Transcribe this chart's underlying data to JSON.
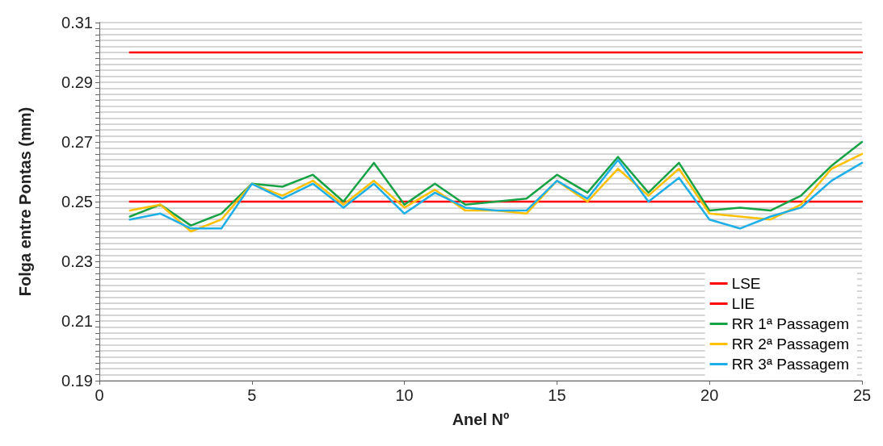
{
  "chart_data": {
    "type": "line",
    "xlabel": "Anel Nº",
    "ylabel": "Folga entre Pontas (mm)",
    "xlim": [
      0,
      25
    ],
    "xticks": [
      0,
      5,
      10,
      15,
      20,
      25
    ],
    "ylim": [
      0.19,
      0.31
    ],
    "yticks": [
      0.19,
      {
        "value": 0.192,
        "label": null
      },
      {
        "value": 0.194,
        "label": null
      },
      {
        "value": 0.196,
        "label": null
      },
      {
        "value": 0.198,
        "label": null
      },
      {
        "value": 0.2,
        "label": null
      },
      {
        "value": 0.202,
        "label": null
      },
      {
        "value": 0.204,
        "label": null
      },
      {
        "value": 0.206,
        "label": null
      },
      {
        "value": 0.208,
        "label": null
      },
      0.21,
      {
        "value": 0.212,
        "label": null
      },
      {
        "value": 0.214,
        "label": null
      },
      {
        "value": 0.216,
        "label": null
      },
      {
        "value": 0.218,
        "label": null
      },
      {
        "value": 0.22,
        "label": null
      },
      {
        "value": 0.222,
        "label": null
      },
      {
        "value": 0.224,
        "label": null
      },
      {
        "value": 0.226,
        "label": null
      },
      {
        "value": 0.228,
        "label": null
      },
      0.23,
      {
        "value": 0.232,
        "label": null
      },
      {
        "value": 0.234,
        "label": null
      },
      {
        "value": 0.236,
        "label": null
      },
      {
        "value": 0.238,
        "label": null
      },
      {
        "value": 0.24,
        "label": null
      },
      {
        "value": 0.242,
        "label": null
      },
      {
        "value": 0.244,
        "label": null
      },
      {
        "value": 0.246,
        "label": null
      },
      {
        "value": 0.248,
        "label": null
      },
      0.25,
      {
        "value": 0.252,
        "label": null
      },
      {
        "value": 0.254,
        "label": null
      },
      {
        "value": 0.256,
        "label": null
      },
      {
        "value": 0.258,
        "label": null
      },
      {
        "value": 0.26,
        "label": null
      },
      {
        "value": 0.262,
        "label": null
      },
      {
        "value": 0.264,
        "label": null
      },
      {
        "value": 0.266,
        "label": null
      },
      {
        "value": 0.268,
        "label": null
      },
      0.27,
      {
        "value": 0.272,
        "label": null
      },
      {
        "value": 0.274,
        "label": null
      },
      {
        "value": 0.276,
        "label": null
      },
      {
        "value": 0.278,
        "label": null
      },
      {
        "value": 0.28,
        "label": null
      },
      {
        "value": 0.282,
        "label": null
      },
      {
        "value": 0.284,
        "label": null
      },
      {
        "value": 0.286,
        "label": null
      },
      {
        "value": 0.288,
        "label": null
      },
      0.29,
      {
        "value": 0.292,
        "label": null
      },
      {
        "value": 0.294,
        "label": null
      },
      {
        "value": 0.296,
        "label": null
      },
      {
        "value": 0.298,
        "label": null
      },
      {
        "value": 0.3,
        "label": null
      },
      {
        "value": 0.302,
        "label": null
      },
      {
        "value": 0.304,
        "label": null
      },
      {
        "value": 0.306,
        "label": null
      },
      {
        "value": 0.308,
        "label": null
      },
      0.31
    ],
    "grid": "y",
    "legend": "bottom right",
    "marker": "none",
    "line_style": "solid",
    "series": [
      {
        "name": "LSE",
        "color": "#ff0000",
        "x": [
          1,
          25
        ],
        "values": [
          0.3,
          0.3
        ]
      },
      {
        "name": "LIE",
        "color": "#ff0000",
        "x": [
          1,
          25
        ],
        "values": [
          0.25,
          0.25
        ]
      },
      {
        "name": "RR 1ª Passagem",
        "color": "#17a345",
        "x": [
          1,
          2,
          3,
          4,
          5,
          6,
          7,
          8,
          9,
          10,
          11,
          12,
          13,
          14,
          15,
          16,
          17,
          18,
          19,
          20,
          21,
          22,
          23,
          24,
          25
        ],
        "values": [
          0.245,
          0.249,
          0.242,
          0.246,
          0.256,
          0.255,
          0.259,
          0.25,
          0.263,
          0.249,
          0.256,
          0.249,
          0.25,
          0.251,
          0.259,
          0.253,
          0.265,
          0.253,
          0.263,
          0.247,
          0.248,
          0.247,
          0.252,
          0.262,
          0.27
        ]
      },
      {
        "name": "RR 2ª Passagem",
        "color": "#ffc000",
        "x": [
          1,
          2,
          3,
          4,
          5,
          6,
          7,
          8,
          9,
          10,
          11,
          12,
          13,
          14,
          15,
          16,
          17,
          18,
          19,
          20,
          21,
          22,
          23,
          24,
          25
        ],
        "values": [
          0.247,
          0.249,
          0.24,
          0.244,
          0.256,
          0.252,
          0.257,
          0.249,
          0.257,
          0.248,
          0.254,
          0.247,
          0.247,
          0.246,
          0.257,
          0.25,
          0.261,
          0.252,
          0.261,
          0.246,
          0.245,
          0.244,
          0.249,
          0.261,
          0.266
        ]
      },
      {
        "name": "RR 3ª Passagem",
        "color": "#1eaee8",
        "x": [
          1,
          2,
          3,
          4,
          5,
          6,
          7,
          8,
          9,
          10,
          11,
          12,
          13,
          14,
          15,
          16,
          17,
          18,
          19,
          20,
          21,
          22,
          23,
          24,
          25
        ],
        "values": [
          0.244,
          0.246,
          0.241,
          0.241,
          0.256,
          0.251,
          0.256,
          0.248,
          0.256,
          0.246,
          0.253,
          0.248,
          0.247,
          0.247,
          0.257,
          0.251,
          0.264,
          0.25,
          0.258,
          0.244,
          0.241,
          0.245,
          0.248,
          0.257,
          0.263
        ]
      }
    ]
  }
}
